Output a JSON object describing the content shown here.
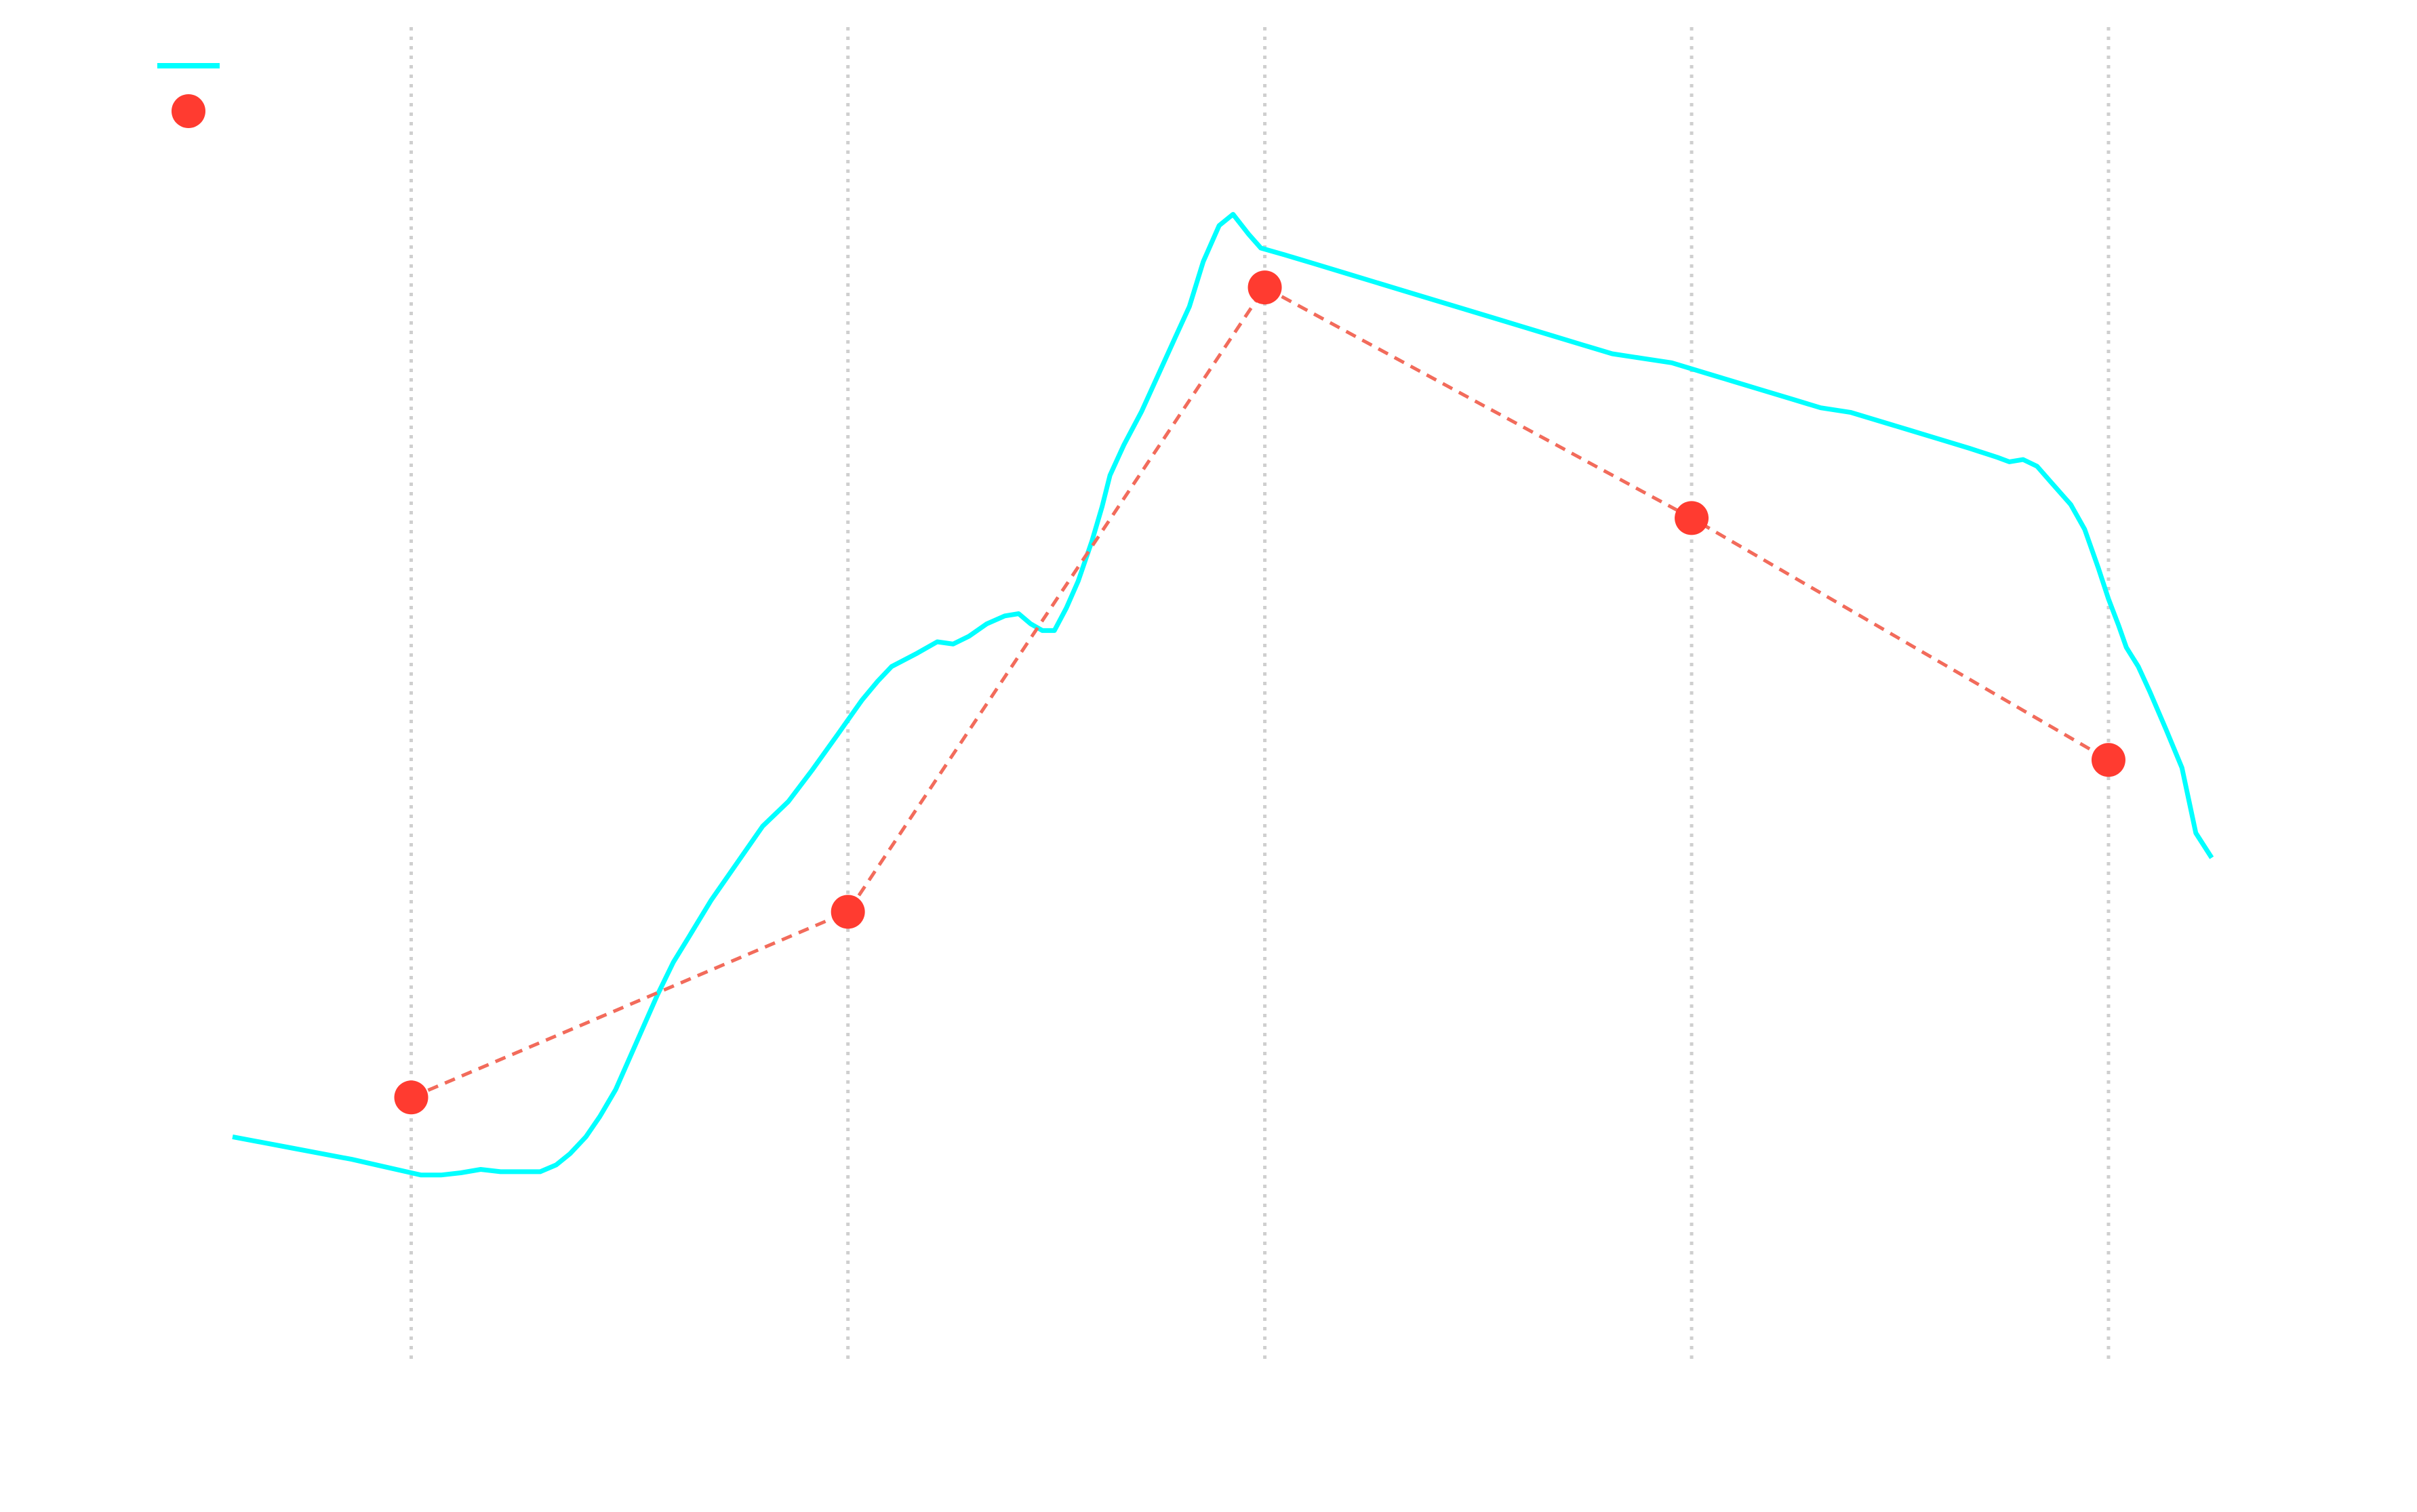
{
  "chart_data": {
    "type": "line",
    "title": "",
    "xlabel": "",
    "ylabel": "",
    "xlim": [
      0,
      100
    ],
    "ylim": [
      0,
      100
    ],
    "grid": {
      "x": true,
      "y": false,
      "style": "dotted"
    },
    "x_gridlines": [
      9,
      31,
      52,
      73.5,
      94.5
    ],
    "legend": {
      "placement": "top-left"
    },
    "series": [
      {
        "kind": "line",
        "color": "#00FFFF",
        "dash": "solid",
        "points": [
          [
            0,
            11
          ],
          [
            1.5,
            10.5
          ],
          [
            3,
            10
          ],
          [
            4.5,
            9.5
          ],
          [
            6,
            9
          ],
          [
            7.5,
            8.4
          ],
          [
            9,
            7.8
          ],
          [
            9.5,
            7.6
          ],
          [
            10.5,
            7.6
          ],
          [
            11.5,
            7.8
          ],
          [
            12.5,
            8.1
          ],
          [
            13.5,
            7.9
          ],
          [
            14.5,
            7.9
          ],
          [
            15.5,
            7.9
          ],
          [
            16.3,
            8.5
          ],
          [
            17,
            9.5
          ],
          [
            17.8,
            11
          ],
          [
            18.5,
            12.8
          ],
          [
            19.3,
            15.2
          ],
          [
            20,
            18
          ],
          [
            20.7,
            20.8
          ],
          [
            21.4,
            23.6
          ],
          [
            22.2,
            26.5
          ],
          [
            23,
            28.8
          ],
          [
            24.1,
            32
          ],
          [
            25.4,
            35.3
          ],
          [
            26.7,
            38.6
          ],
          [
            28,
            40.8
          ],
          [
            29.2,
            43.6
          ],
          [
            30.5,
            46.8
          ],
          [
            31.7,
            49.8
          ],
          [
            32.5,
            51.5
          ],
          [
            33.2,
            52.8
          ],
          [
            34.5,
            54
          ],
          [
            35.5,
            55
          ],
          [
            36.3,
            54.8
          ],
          [
            37.1,
            55.5
          ],
          [
            38,
            56.6
          ],
          [
            38.9,
            57.3
          ],
          [
            39.6,
            57.5
          ],
          [
            40.2,
            56.6
          ],
          [
            40.8,
            56
          ],
          [
            41.4,
            56
          ],
          [
            42,
            58
          ],
          [
            42.6,
            60.4
          ],
          [
            43.3,
            64
          ],
          [
            43.8,
            67
          ],
          [
            44.2,
            69.8
          ],
          [
            44.9,
            72.5
          ],
          [
            45.8,
            75.5
          ],
          [
            46.7,
            79
          ],
          [
            47.5,
            82.1
          ],
          [
            48.2,
            84.8
          ],
          [
            48.9,
            88.8
          ],
          [
            49.7,
            92
          ],
          [
            50.4,
            93
          ],
          [
            51.2,
            91.2
          ],
          [
            51.8,
            90
          ],
          [
            53,
            89.4
          ],
          [
            54.5,
            88.6
          ],
          [
            56,
            87.8
          ],
          [
            57.5,
            87
          ],
          [
            59,
            86.2
          ],
          [
            60.5,
            85.4
          ],
          [
            62,
            84.6
          ],
          [
            63.5,
            83.8
          ],
          [
            65,
            83
          ],
          [
            66.5,
            82.2
          ],
          [
            68,
            81.4
          ],
          [
            69.5,
            80.6
          ],
          [
            71,
            80.2
          ],
          [
            72.5,
            79.8
          ],
          [
            74,
            79
          ],
          [
            75.5,
            78.2
          ],
          [
            77,
            77.4
          ],
          [
            78.5,
            76.6
          ],
          [
            80,
            75.8
          ],
          [
            81.5,
            75.4
          ],
          [
            83,
            74.6
          ],
          [
            84.5,
            73.8
          ],
          [
            86,
            73
          ],
          [
            87.5,
            72.2
          ],
          [
            88.9,
            71.4
          ],
          [
            89.5,
            71
          ],
          [
            90.2,
            71.2
          ],
          [
            90.9,
            70.6
          ],
          [
            91.6,
            69.2
          ],
          [
            92.6,
            67.2
          ],
          [
            93.3,
            65
          ],
          [
            94,
            61.5
          ],
          [
            94.5,
            58.8
          ],
          [
            95,
            56.5
          ],
          [
            95.4,
            54.5
          ],
          [
            96,
            52.8
          ],
          [
            96.6,
            50.5
          ],
          [
            97.4,
            47.2
          ],
          [
            98.2,
            43.8
          ],
          [
            98.9,
            38
          ],
          [
            99.7,
            35.8
          ]
        ]
      },
      {
        "kind": "scatter",
        "color": "#FF3B30",
        "connector": {
          "dash": "dashed",
          "color": "#F26B5B"
        },
        "points": [
          [
            9,
            14.5
          ],
          [
            31,
            31
          ],
          [
            52,
            86.5
          ],
          [
            73.5,
            66
          ],
          [
            94.5,
            44.5
          ]
        ]
      }
    ]
  }
}
